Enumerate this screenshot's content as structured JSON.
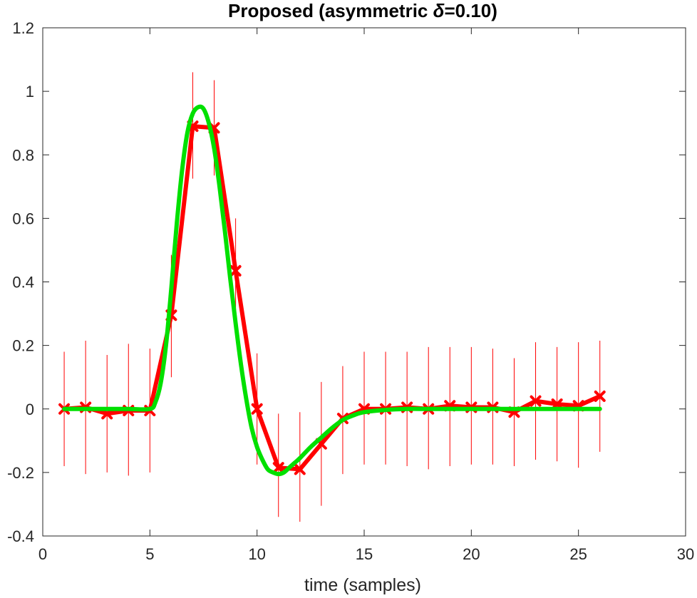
{
  "chart_data": {
    "type": "line",
    "title_prefix": "Proposed (asymmetric ",
    "title_symbol": "δ",
    "title_suffix": "=0.10)",
    "xlabel": "time (samples)",
    "ylabel": "",
    "xlim": [
      0,
      30
    ],
    "ylim": [
      -0.4,
      1.2
    ],
    "xticks": [
      0,
      5,
      10,
      15,
      20,
      25,
      30
    ],
    "xtick_labels": [
      "0",
      "5",
      "10",
      "15",
      "20",
      "25",
      "30"
    ],
    "yticks": [
      -0.4,
      -0.2,
      0,
      0.2,
      0.4,
      0.6,
      0.8,
      1,
      1.2
    ],
    "ytick_labels": [
      "-0.4",
      "-0.2",
      "0",
      "0.2",
      "0.4",
      "0.6",
      "0.8",
      "1",
      "1.2"
    ],
    "grid": false,
    "colors": {
      "estimate": "#ff0000",
      "true": "#00e000",
      "axes": "#262626"
    },
    "series": [
      {
        "style": "estimate-with-errorbars",
        "x": [
          1,
          2,
          3,
          4,
          5,
          6,
          7,
          8,
          9,
          10,
          11,
          12,
          13,
          14,
          15,
          16,
          17,
          18,
          19,
          20,
          21,
          22,
          23,
          24,
          25,
          26
        ],
        "y": [
          0.0,
          0.005,
          -0.015,
          -0.005,
          -0.005,
          0.295,
          0.89,
          0.885,
          0.435,
          0.0,
          -0.185,
          -0.19,
          -0.11,
          -0.03,
          0.0,
          0.0,
          0.005,
          0.0,
          0.01,
          0.005,
          0.005,
          -0.01,
          0.025,
          0.015,
          0.01,
          0.04
        ],
        "err_low": [
          -0.18,
          -0.205,
          -0.2,
          -0.21,
          -0.2,
          0.1,
          0.725,
          0.735,
          0.265,
          -0.175,
          -0.34,
          -0.355,
          -0.305,
          -0.205,
          -0.175,
          -0.175,
          -0.18,
          -0.19,
          -0.18,
          -0.175,
          -0.175,
          -0.18,
          -0.16,
          -0.165,
          -0.185,
          -0.135
        ],
        "err_high": [
          0.18,
          0.215,
          0.17,
          0.205,
          0.19,
          0.485,
          1.06,
          1.035,
          0.6,
          0.175,
          -0.015,
          -0.01,
          0.085,
          0.135,
          0.18,
          0.18,
          0.18,
          0.195,
          0.195,
          0.195,
          0.19,
          0.16,
          0.21,
          0.195,
          0.21,
          0.215
        ]
      },
      {
        "style": "true-pulse",
        "x": [
          1,
          2,
          3,
          4,
          5,
          5.25,
          5.5,
          5.75,
          6,
          6.25,
          6.5,
          6.75,
          7,
          7.25,
          7.5,
          7.75,
          8,
          8.25,
          8.5,
          8.75,
          9,
          9.25,
          9.5,
          9.75,
          10,
          10.25,
          10.5,
          10.75,
          11,
          11.25,
          11.5,
          11.75,
          12,
          12.5,
          13,
          13.5,
          14,
          14.5,
          15,
          16,
          17,
          18,
          19,
          20,
          21,
          22,
          23,
          24,
          25,
          26
        ],
        "y": [
          0,
          0,
          0,
          0,
          0,
          0.02,
          0.08,
          0.2,
          0.38,
          0.58,
          0.75,
          0.87,
          0.93,
          0.95,
          0.945,
          0.9,
          0.82,
          0.7,
          0.56,
          0.41,
          0.27,
          0.14,
          0.03,
          -0.06,
          -0.12,
          -0.16,
          -0.19,
          -0.2,
          -0.205,
          -0.2,
          -0.185,
          -0.17,
          -0.155,
          -0.12,
          -0.09,
          -0.06,
          -0.035,
          -0.02,
          -0.01,
          -0.003,
          0,
          0,
          0,
          0,
          0,
          0,
          0,
          0,
          0,
          0
        ]
      }
    ]
  }
}
